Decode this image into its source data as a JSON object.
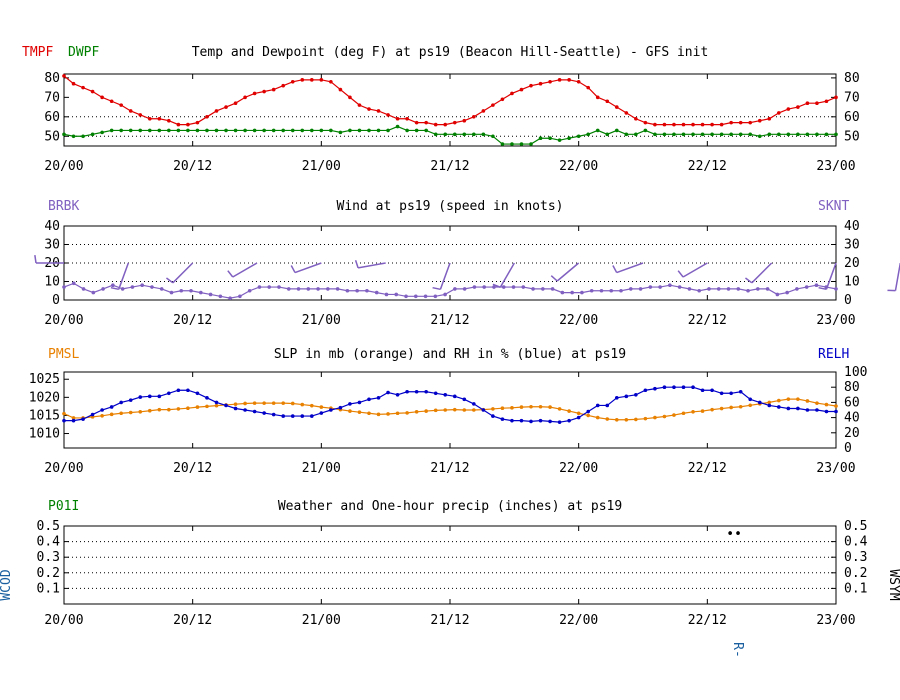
{
  "chart_data": [
    {
      "type": "line",
      "title": "Temp and Dewpoint (deg F) at ps19  (Beacon Hill-Seattle) - GFS init",
      "left_labels": [
        "TMPF",
        "DWPF"
      ],
      "yticks": [
        "80",
        "70",
        "60",
        "50"
      ],
      "ylim": [
        45,
        82
      ],
      "xticks": [
        "20/00",
        "20/12",
        "21/00",
        "21/12",
        "22/00",
        "22/12",
        "23/00"
      ],
      "grid": true,
      "series": [
        {
          "name": "TMPF",
          "color": "#e00000",
          "values": [
            81,
            77,
            75,
            73,
            70,
            68,
            66,
            63,
            61,
            59,
            59,
            58,
            56,
            56,
            57,
            60,
            63,
            65,
            67,
            70,
            72,
            73,
            74,
            76,
            78,
            79,
            79,
            79,
            78,
            74,
            70,
            66,
            64,
            63,
            61,
            59,
            59,
            57,
            57,
            56,
            56,
            57,
            58,
            60,
            63,
            66,
            69,
            72,
            74,
            76,
            77,
            78,
            79,
            79,
            78,
            75,
            70,
            68,
            65,
            62,
            59,
            57,
            56,
            56,
            56,
            56,
            56,
            56,
            56,
            56,
            57,
            57,
            57,
            58,
            59,
            62,
            64,
            65,
            67,
            67,
            68,
            70
          ]
        },
        {
          "name": "DWPF",
          "color": "#008000",
          "values": [
            51,
            50,
            50,
            51,
            52,
            53,
            53,
            53,
            53,
            53,
            53,
            53,
            53,
            53,
            53,
            53,
            53,
            53,
            53,
            53,
            53,
            53,
            53,
            53,
            53,
            53,
            53,
            53,
            53,
            52,
            53,
            53,
            53,
            53,
            53,
            55,
            53,
            53,
            53,
            51,
            51,
            51,
            51,
            51,
            51,
            50,
            46,
            46,
            46,
            46,
            49,
            49,
            48,
            49,
            50,
            51,
            53,
            51,
            53,
            51,
            51,
            53,
            51,
            51,
            51,
            51,
            51,
            51,
            51,
            51,
            51,
            51,
            51,
            50,
            51,
            51,
            51,
            51,
            51,
            51,
            51,
            51
          ]
        }
      ]
    },
    {
      "type": "line",
      "title": "Wind at  ps19  (speed in knots)",
      "left_labels": [
        "BRBK"
      ],
      "right_labels": [
        "SKNT"
      ],
      "yticks": [
        "40",
        "30",
        "20",
        "10",
        "0"
      ],
      "ylim": [
        0,
        40
      ],
      "xticks": [
        "20/00",
        "20/12",
        "21/00",
        "21/12",
        "22/00",
        "22/12",
        "23/00"
      ],
      "grid": true,
      "series": [
        {
          "name": "SKNT",
          "color": "#8060c0",
          "values": [
            7,
            9,
            6,
            4,
            6,
            8,
            6,
            7,
            8,
            7,
            6,
            4,
            5,
            5,
            4,
            3,
            2,
            1,
            2,
            5,
            7,
            7,
            7,
            6,
            6,
            6,
            6,
            6,
            6,
            5,
            5,
            5,
            4,
            3,
            3,
            2,
            2,
            2,
            2,
            3,
            6,
            6,
            7,
            7,
            7,
            7,
            7,
            7,
            6,
            6,
            6,
            4,
            4,
            4,
            5,
            5,
            5,
            5,
            6,
            6,
            7,
            7,
            8,
            7,
            6,
            5,
            6,
            6,
            6,
            6,
            5,
            6,
            6,
            3,
            4,
            6,
            7,
            8,
            7,
            6
          ]
        }
      ],
      "wind_barbs": [
        {
          "t": 0,
          "dir": 270
        },
        {
          "t": 6,
          "dir": 200
        },
        {
          "t": 12,
          "dir": 225
        },
        {
          "t": 18,
          "dir": 240
        },
        {
          "t": 24,
          "dir": 250
        },
        {
          "t": 30,
          "dir": 260
        },
        {
          "t": 36,
          "dir": 200
        },
        {
          "t": 42,
          "dir": 210
        },
        {
          "t": 48,
          "dir": 230
        },
        {
          "t": 54,
          "dir": 250
        },
        {
          "t": 60,
          "dir": 240
        },
        {
          "t": 66,
          "dir": 225
        },
        {
          "t": 72,
          "dir": 200
        },
        {
          "t": 78,
          "dir": 190
        }
      ]
    },
    {
      "type": "line",
      "title": "SLP in mb (orange) and RH in % (blue) at  ps19",
      "left_labels": [
        "PMSL"
      ],
      "right_labels": [
        "RELH"
      ],
      "yticks": [
        "1025",
        "1020",
        "1015",
        "1010"
      ],
      "ylim": [
        1006,
        1027
      ],
      "y2ticks": [
        "100",
        "80",
        "60",
        "40",
        "20",
        "0"
      ],
      "y2lim": [
        0,
        100
      ],
      "xticks": [
        "20/00",
        "20/12",
        "21/00",
        "21/12",
        "22/00",
        "22/12",
        "23/00"
      ],
      "series": [
        {
          "name": "PMSL",
          "color": "#e88000",
          "values": [
            1015.5,
            1014.3,
            1014.3,
            1014.6,
            1014.9,
            1015.3,
            1015.6,
            1015.8,
            1016.0,
            1016.3,
            1016.6,
            1016.6,
            1016.8,
            1017.0,
            1017.3,
            1017.5,
            1017.7,
            1017.9,
            1018.1,
            1018.3,
            1018.4,
            1018.4,
            1018.4,
            1018.4,
            1018.3,
            1018.0,
            1017.7,
            1017.3,
            1017.0,
            1016.6,
            1016.2,
            1015.9,
            1015.6,
            1015.3,
            1015.4,
            1015.6,
            1015.7,
            1016.0,
            1016.2,
            1016.4,
            1016.5,
            1016.6,
            1016.5,
            1016.5,
            1016.6,
            1016.8,
            1017.0,
            1017.1,
            1017.3,
            1017.4,
            1017.4,
            1017.3,
            1016.8,
            1016.2,
            1015.6,
            1015.0,
            1014.4,
            1014.0,
            1013.8,
            1013.8,
            1013.9,
            1014.1,
            1014.4,
            1014.7,
            1015.1,
            1015.6,
            1016.0,
            1016.2,
            1016.6,
            1016.9,
            1017.2,
            1017.4,
            1017.8,
            1018.2,
            1018.6,
            1019.1,
            1019.5,
            1019.5,
            1019.0,
            1018.4,
            1018.0,
            1017.6
          ]
        },
        {
          "name": "RELH",
          "color": "#0000c8",
          "values": [
            36,
            36,
            38,
            44,
            50,
            54,
            60,
            63,
            67,
            68,
            68,
            72,
            76,
            76,
            72,
            66,
            60,
            56,
            52,
            50,
            48,
            46,
            44,
            42,
            42,
            42,
            42,
            46,
            50,
            53,
            58,
            60,
            64,
            66,
            73,
            70,
            74,
            74,
            74,
            72,
            70,
            68,
            64,
            58,
            50,
            42,
            38,
            36,
            36,
            35,
            36,
            35,
            34,
            36,
            40,
            48,
            56,
            56,
            66,
            68,
            70,
            76,
            78,
            80,
            80,
            80,
            80,
            76,
            76,
            72,
            72,
            74,
            64,
            60,
            56,
            54,
            52,
            52,
            50,
            50,
            48,
            48
          ]
        }
      ]
    },
    {
      "type": "line",
      "title": "Weather and One-hour precip (inches) at  ps19",
      "left_labels": [
        "P01I"
      ],
      "side_left_label": "WCOD",
      "side_right_label": "WSYM",
      "yticks": [
        "0.5",
        "0.4",
        "0.3",
        "0.2",
        "0.1"
      ],
      "ylim": [
        0,
        0.5
      ],
      "xticks": [
        "20/00",
        "20/12",
        "21/00",
        "21/12",
        "22/00",
        "22/12",
        "23/00"
      ],
      "grid": true,
      "weather_symbol": "••",
      "weather_code": "R-",
      "series": [
        {
          "name": "WSYM",
          "color": "#000000",
          "points": [
            {
              "t": 62.5,
              "y": 0.45
            }
          ]
        }
      ]
    }
  ]
}
